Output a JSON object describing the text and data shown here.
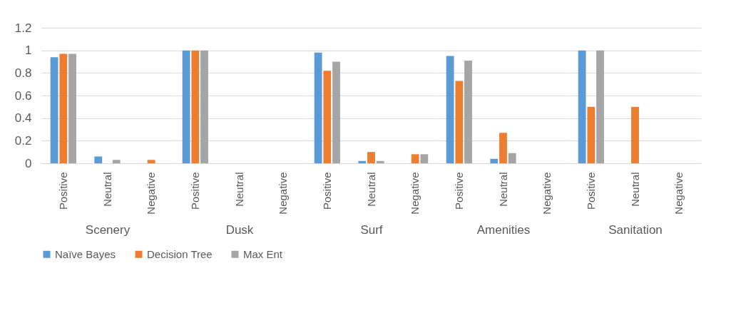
{
  "chart_data": [
    {
      "type": "bar",
      "xlabel": "Scenery",
      "categories": [
        "Positive",
        "Neutral",
        "Negative"
      ],
      "series": [
        {
          "name": "Naïve Bayes",
          "color": "#5b9bd5",
          "values": [
            0.94,
            0.06,
            0
          ]
        },
        {
          "name": "Decision Tree",
          "color": "#ed7d31",
          "values": [
            0.97,
            0,
            0.03
          ]
        },
        {
          "name": "Max Ent",
          "color": "#a5a5a5",
          "values": [
            0.97,
            0.03,
            0
          ]
        }
      ],
      "ylim": [
        0,
        1.2
      ],
      "yticks": [
        0,
        0.2,
        0.4,
        0.6,
        0.8,
        1,
        1.2
      ],
      "grid": "y",
      "legend": "bottom"
    },
    {
      "type": "bar",
      "xlabel": "Dusk",
      "categories": [
        "Positive",
        "Neutral",
        "Negative"
      ],
      "series": [
        {
          "name": "Naïve Bayes",
          "color": "#5b9bd5",
          "values": [
            1,
            0,
            0
          ]
        },
        {
          "name": "Decision Tree",
          "color": "#ed7d31",
          "values": [
            1,
            0,
            0
          ]
        },
        {
          "name": "Max Ent",
          "color": "#a5a5a5",
          "values": [
            1,
            0,
            0
          ]
        }
      ],
      "ylim": [
        0,
        1.2
      ],
      "yticks": [
        0,
        0.2,
        0.4,
        0.6,
        0.8,
        1,
        1.2
      ],
      "grid": "y",
      "legend": "bottom",
      "tick_labels": "x"
    },
    {
      "type": "bar",
      "xlabel": "Surf",
      "categories": [
        "Positive",
        "Neutral",
        "Negative"
      ],
      "series": [
        {
          "name": "Naïve Bayes",
          "color": "#5b9bd5",
          "values": [
            0.98,
            0.02,
            0
          ]
        },
        {
          "name": "Decision Tree",
          "color": "#ed7d31",
          "values": [
            0.82,
            0.1,
            0.08
          ]
        },
        {
          "name": "Max Ent",
          "color": "#a5a5a5",
          "values": [
            0.9,
            0.02,
            0.08
          ]
        }
      ],
      "ylim": [
        0,
        1.2
      ],
      "yticks": [
        0,
        0.2,
        0.4,
        0.6,
        0.8,
        1,
        1.2
      ],
      "grid": "y",
      "legend": "bottom",
      "tick_labels": "x"
    },
    {
      "type": "bar",
      "xlabel": "Amenities",
      "categories": [
        "Positive",
        "Neutral",
        "Negative"
      ],
      "series": [
        {
          "name": "Naïve Bayes",
          "color": "#5b9bd5",
          "values": [
            0.95,
            0.04,
            0
          ]
        },
        {
          "name": "Decision Tree",
          "color": "#ed7d31",
          "values": [
            0.73,
            0.27,
            0
          ]
        },
        {
          "name": "Max Ent",
          "color": "#a5a5a5",
          "values": [
            0.91,
            0.09,
            0
          ]
        }
      ],
      "ylim": [
        0,
        1.2
      ],
      "yticks": [
        0,
        0.2,
        0.4,
        0.6,
        0.8,
        1,
        1.2
      ],
      "grid": "y",
      "legend": "bottom",
      "tick_labels": "x"
    },
    {
      "type": "bar",
      "xlabel": "Sanitation",
      "categories": [
        "Positive",
        "Neutral",
        "Negative"
      ],
      "series": [
        {
          "name": "Naïve Bayes",
          "color": "#5b9bd5",
          "values": [
            1,
            0,
            0
          ]
        },
        {
          "name": "Decision Tree",
          "color": "#ed7d31",
          "values": [
            0.5,
            0.5,
            0
          ]
        },
        {
          "name": "Max Ent",
          "color": "#a5a5a5",
          "values": [
            1,
            0,
            0
          ]
        }
      ],
      "ylim": [
        0,
        1.2
      ],
      "yticks": [
        0,
        0.2,
        0.4,
        0.6,
        0.8,
        1,
        1.2
      ],
      "grid": "y",
      "legend": "bottom",
      "tick_labels": "x"
    }
  ]
}
